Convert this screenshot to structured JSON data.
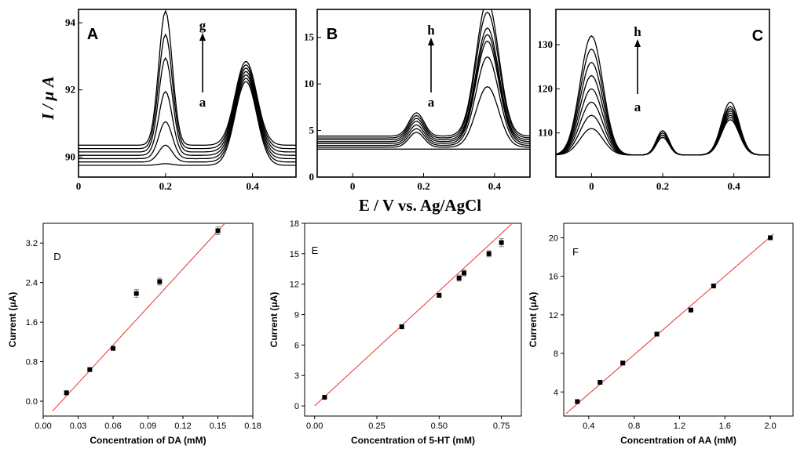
{
  "figure": {
    "top_ylabel": "I / μ A",
    "top_xlabel": "E / V vs. Ag/AgCl",
    "bottom_ylabel": "Current (μA)"
  },
  "chart_data": [
    {
      "id": "A",
      "type": "line",
      "panel_label": "A",
      "xlim": [
        0,
        0.5
      ],
      "ylim": [
        89.4,
        94.4
      ],
      "xticks": [
        0,
        0.2,
        0.4
      ],
      "xtick_labels": [
        "0",
        "0.2",
        "0.4"
      ],
      "yticks": [
        90,
        92,
        94
      ],
      "ytick_labels": [
        "90",
        "92",
        "94"
      ],
      "annotation": {
        "low": "a",
        "high": "g"
      },
      "peaks": [
        {
          "x": 0.2,
          "w": 0.022,
          "heights": [
            0.05,
            0.5,
            1.1,
            1.9,
            2.8,
            3.4,
            4.0
          ]
        },
        {
          "x": 0.385,
          "w": 0.035,
          "heights": [
            2.5,
            2.5,
            2.5,
            2.5,
            2.5,
            2.5,
            2.5
          ]
        }
      ],
      "baselines": [
        89.75,
        89.85,
        89.95,
        90.05,
        90.15,
        90.25,
        90.35
      ],
      "series": []
    },
    {
      "id": "B",
      "type": "line",
      "panel_label": "B",
      "xlim": [
        -0.1,
        0.5
      ],
      "ylim": [
        0,
        18
      ],
      "xticks": [
        0,
        0.2,
        0.4
      ],
      "xtick_labels": [
        "0",
        "0.2",
        "0.4"
      ],
      "yticks": [
        0,
        5,
        10,
        15
      ],
      "ytick_labels": [
        "0",
        "5",
        "10",
        "15"
      ],
      "annotation": {
        "low": "a",
        "high": "h"
      },
      "peaks": [
        {
          "x": 0.18,
          "w": 0.03,
          "heights": [
            0.0,
            1.6,
            1.8,
            2.0,
            2.2,
            2.3,
            2.4,
            2.5
          ]
        },
        {
          "x": 0.38,
          "w": 0.045,
          "heights": [
            0.0,
            6.5,
            9.5,
            11.0,
            11.5,
            12.0,
            13.5,
            14.5
          ]
        }
      ],
      "baselines": [
        3.0,
        3.2,
        3.4,
        3.6,
        3.8,
        4.0,
        4.2,
        4.4
      ],
      "series": []
    },
    {
      "id": "C",
      "type": "line",
      "panel_label": "C",
      "xlim": [
        -0.1,
        0.5
      ],
      "ylim": [
        100,
        138
      ],
      "xticks": [
        0,
        0.2,
        0.4
      ],
      "xtick_labels": [
        "0",
        "0.2",
        "0.4"
      ],
      "yticks": [
        110,
        120,
        130
      ],
      "ytick_labels": [
        "110",
        "120",
        "130"
      ],
      "annotation": {
        "low": "a",
        "high": "h"
      },
      "peaks": [
        {
          "x": 0.0,
          "w": 0.045,
          "heights": [
            6,
            9,
            12,
            15,
            18,
            21,
            24,
            27
          ]
        },
        {
          "x": 0.2,
          "w": 0.025,
          "heights": [
            4,
            4,
            4.5,
            4.5,
            5,
            5,
            5.5,
            5.5
          ]
        },
        {
          "x": 0.39,
          "w": 0.035,
          "heights": [
            8,
            8.5,
            9,
            9.5,
            10,
            10.5,
            11,
            12
          ]
        }
      ],
      "baselines": [
        105,
        105,
        105,
        105,
        105,
        105,
        105,
        105
      ],
      "series": []
    },
    {
      "id": "D",
      "type": "scatter",
      "panel_label": "D",
      "x": [
        0.02,
        0.04,
        0.06,
        0.08,
        0.1,
        0.15
      ],
      "y": [
        0.17,
        0.64,
        1.07,
        2.18,
        2.42,
        3.45
      ],
      "err": [
        0.04,
        0.03,
        0.04,
        0.08,
        0.07,
        0.08
      ],
      "fit": {
        "x": [
          0.008,
          0.156
        ],
        "y": [
          -0.2,
          3.6
        ]
      },
      "xlim": [
        0.0,
        0.18
      ],
      "ylim": [
        -0.3,
        3.6
      ],
      "xticks": [
        0.0,
        0.03,
        0.06,
        0.09,
        0.12,
        0.15,
        0.18
      ],
      "xtick_labels": [
        "0.00",
        "0.03",
        "0.06",
        "0.09",
        "0.12",
        "0.15",
        "0.18"
      ],
      "yticks": [
        0.0,
        0.8,
        1.6,
        2.4,
        3.2
      ],
      "ytick_labels": [
        "0.0",
        "0.8",
        "1.6",
        "2.4",
        "3.2"
      ],
      "xlabel": "Concentration of DA (mM)",
      "ylabel": "Current (μA)"
    },
    {
      "id": "E",
      "type": "scatter",
      "panel_label": "E",
      "x": [
        0.04,
        0.35,
        0.5,
        0.58,
        0.6,
        0.7,
        0.75
      ],
      "y": [
        0.85,
        7.8,
        10.9,
        12.6,
        13.1,
        15.0,
        16.1
      ],
      "err": [
        0.1,
        0.2,
        0.2,
        0.3,
        0.3,
        0.3,
        0.4
      ],
      "fit": {
        "x": [
          0.0,
          0.79
        ],
        "y": [
          0.0,
          17.9
        ]
      },
      "xlim": [
        -0.04,
        0.83
      ],
      "ylim": [
        -1,
        18
      ],
      "xticks": [
        0.0,
        0.25,
        0.5,
        0.75
      ],
      "xtick_labels": [
        "0.00",
        "0.25",
        "0.50",
        "0.75"
      ],
      "yticks": [
        0,
        3,
        6,
        9,
        12,
        15,
        18
      ],
      "ytick_labels": [
        "0",
        "3",
        "6",
        "9",
        "12",
        "15",
        "18"
      ],
      "xlabel": "Concentration of 5-HT (mM)",
      "ylabel": "Current (μA)"
    },
    {
      "id": "F",
      "type": "scatter",
      "panel_label": "F",
      "x": [
        0.3,
        0.5,
        0.7,
        1.0,
        1.3,
        1.5,
        2.0
      ],
      "y": [
        3.0,
        5.0,
        7.0,
        10.0,
        12.5,
        15.0,
        20.0
      ],
      "err": [
        0.1,
        0.1,
        0.1,
        0.1,
        0.1,
        0.1,
        0.1
      ],
      "fit": {
        "x": [
          0.2,
          2.03
        ],
        "y": [
          1.75,
          20.4
        ]
      },
      "xlim": [
        0.18,
        2.2
      ],
      "ylim": [
        1.5,
        21.5
      ],
      "xticks": [
        0.4,
        0.8,
        1.2,
        1.6,
        2.0
      ],
      "xtick_labels": [
        "0.4",
        "0.8",
        "1.2",
        "1.6",
        "2.0"
      ],
      "yticks": [
        4,
        8,
        12,
        16,
        20
      ],
      "ytick_labels": [
        "4",
        "8",
        "12",
        "16",
        "20"
      ],
      "xlabel": "Concentration of AA (mM)",
      "ylabel": "Current (μA)"
    }
  ]
}
